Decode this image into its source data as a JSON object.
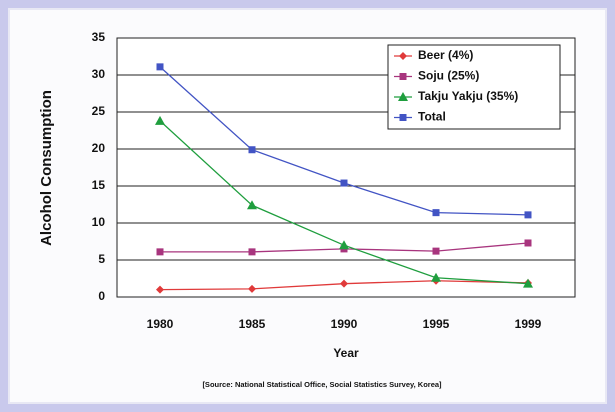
{
  "chart_data": {
    "type": "line",
    "y_label": "Alcohol Consumption",
    "x_label": "Year",
    "source": "[Source:  National Statistical Office, Social Statistics Survey, Korea]",
    "categories": [
      "1980",
      "1985",
      "1990",
      "1995",
      "1999"
    ],
    "series": [
      {
        "name": "Beer (4%)",
        "color": "#e03a3a",
        "marker": "diamond",
        "values": [
          1,
          1.1,
          1.8,
          2.2,
          1.9
        ]
      },
      {
        "name": "Soju (25%)",
        "color": "#a8357e",
        "marker": "square",
        "values": [
          6.1,
          6.1,
          6.5,
          6.2,
          7.3
        ]
      },
      {
        "name": "Takju Yakju (35%)",
        "color": "#1f9e3e",
        "marker": "triangle",
        "values": [
          23.8,
          12.4,
          7,
          2.6,
          1.8
        ]
      },
      {
        "name": "Total",
        "color": "#4254c4",
        "marker": "square",
        "values": [
          31.1,
          19.9,
          15.4,
          11.4,
          11.1
        ]
      }
    ],
    "ylim": [
      0,
      35
    ],
    "yticks": [
      0,
      5,
      10,
      15,
      20,
      25,
      30,
      35
    ],
    "grid": true,
    "legend": "top-right"
  }
}
